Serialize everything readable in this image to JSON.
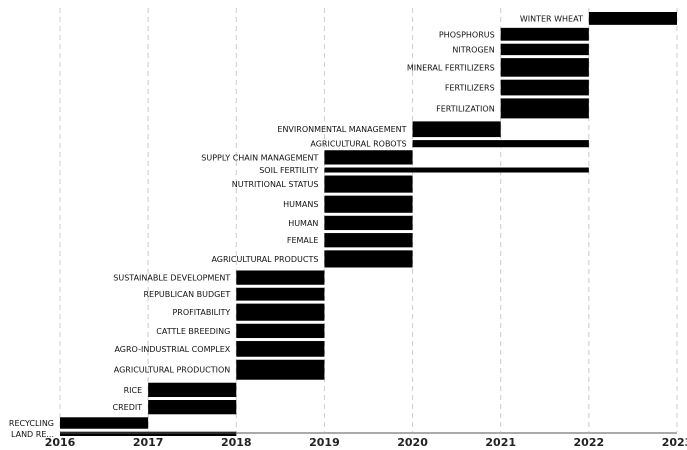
{
  "chart_data": {
    "type": "bar",
    "orientation": "horizontal",
    "title": "",
    "xlabel": "",
    "ylabel": "",
    "xlim": [
      2016,
      2023
    ],
    "x_ticks": [
      "2016",
      "2017",
      "2018",
      "2019",
      "2020",
      "2021",
      "2022",
      "2023"
    ],
    "grid": true,
    "bar_color": "#000000",
    "terms": [
      {
        "label": "WINTER WHEAT",
        "start": 2022,
        "end": 2023,
        "weight": 0.9
      },
      {
        "label": "PHOSPHORUS",
        "start": 2021,
        "end": 2022,
        "weight": 0.9
      },
      {
        "label": "NITROGEN",
        "start": 2021,
        "end": 2022,
        "weight": 0.8
      },
      {
        "label": "MINERAL FERTILIZERS",
        "start": 2021,
        "end": 2022,
        "weight": 1.3
      },
      {
        "label": "FERTILIZERS",
        "start": 2021,
        "end": 2022,
        "weight": 1.1
      },
      {
        "label": "FERTILIZATION",
        "start": 2021,
        "end": 2022,
        "weight": 1.4
      },
      {
        "label": "ENVIRONMENTAL MANAGEMENT",
        "start": 2020,
        "end": 2021,
        "weight": 1.1
      },
      {
        "label": "AGRICULTURAL ROBOTS",
        "start": 2020,
        "end": 2022,
        "weight": 0.5
      },
      {
        "label": "SUPPLY CHAIN MANAGEMENT",
        "start": 2019,
        "end": 2020,
        "weight": 1.0
      },
      {
        "label": "SOIL FERTILITY",
        "start": 2019,
        "end": 2022,
        "weight": 0.35
      },
      {
        "label": "NUTRITIONAL STATUS",
        "start": 2019,
        "end": 2020,
        "weight": 1.2
      },
      {
        "label": "HUMANS",
        "start": 2019,
        "end": 2020,
        "weight": 1.2
      },
      {
        "label": "HUMAN",
        "start": 2019,
        "end": 2020,
        "weight": 1.0
      },
      {
        "label": "FEMALE",
        "start": 2019,
        "end": 2020,
        "weight": 1.0
      },
      {
        "label": "AGRICULTURAL PRODUCTS",
        "start": 2019,
        "end": 2020,
        "weight": 1.2
      },
      {
        "label": "SUSTAINABLE DEVELOPMENT",
        "start": 2018,
        "end": 2019,
        "weight": 1.0
      },
      {
        "label": "REPUBLICAN BUDGET",
        "start": 2018,
        "end": 2019,
        "weight": 0.9
      },
      {
        "label": "PROFITABILITY",
        "start": 2018,
        "end": 2019,
        "weight": 1.2
      },
      {
        "label": "CATTLE BREEDING",
        "start": 2018,
        "end": 2019,
        "weight": 1.0
      },
      {
        "label": "AGRO-INDUSTRIAL COMPLEX",
        "start": 2018,
        "end": 2019,
        "weight": 1.1
      },
      {
        "label": "AGRICULTURAL PRODUCTION",
        "start": 2018,
        "end": 2019,
        "weight": 1.4
      },
      {
        "label": "RICE",
        "start": 2017,
        "end": 2018,
        "weight": 1.0
      },
      {
        "label": "CREDIT",
        "start": 2017,
        "end": 2018,
        "weight": 1.0
      },
      {
        "label": "RECYCLING",
        "start": 2016,
        "end": 2017,
        "weight": 0.8
      },
      {
        "label": "LAND RE...",
        "start": 2016,
        "end": 2018,
        "weight": 0.3
      }
    ]
  }
}
